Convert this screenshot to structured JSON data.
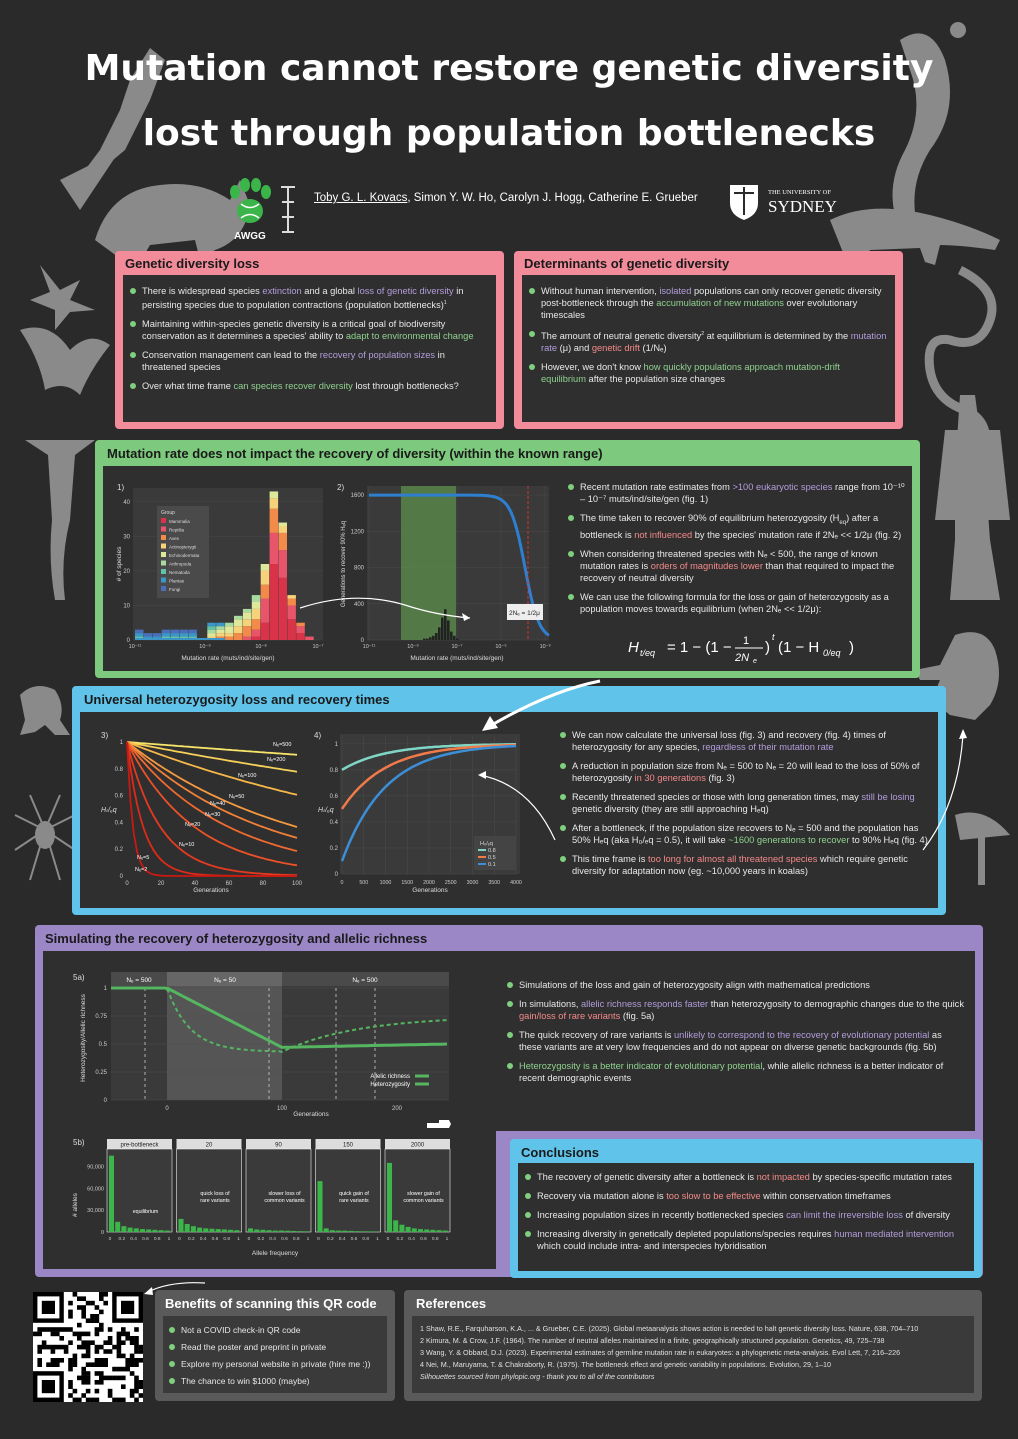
{
  "title_line1": "Mutation cannot restore genetic diversity",
  "title_line2": "lost through population bottlenecks",
  "authors": {
    "first": "Toby G. L. Kovacs",
    "rest": ", Simon Y. W. Ho, Carolyn J. Hogg, Catherine E. Grueber"
  },
  "logo_awgg": "AWGG",
  "logo_uni_small": "THE UNIVERSITY OF",
  "logo_uni_big": "SYDNEY",
  "sec_loss": {
    "title": "Genetic diversity loss",
    "b1_a": "There is widespread species ",
    "b1_h1": "extinction",
    "b1_b": " and a global ",
    "b1_h2": "loss of genetic diversity",
    "b1_c": " in persisting species due to population contractions (population bottlenecks)",
    "b2_a": "Maintaining within-species genetic diversity is a critical goal of biodiversity conservation as it determines a species' ability to ",
    "b2_h": "adapt to environmental change",
    "b3_a": "Conservation management can lead to the ",
    "b3_h": "recovery of population sizes",
    "b3_b": " in threatened species",
    "b4_a": "Over what time frame ",
    "b4_h": "can species recover diversity",
    "b4_b": " lost through bottlenecks?"
  },
  "sec_det": {
    "title": "Determinants of genetic diversity",
    "b1_a": "Without human intervention, ",
    "b1_h1": "isolated",
    "b1_b": " populations can only recover genetic diversity post-bottleneck through the ",
    "b1_h2": "accumulation of new mutations",
    "b1_c": " over evolutionary timescales",
    "b2_a": "The amount of neutral genetic diversity",
    "b2_b": " at equilibrium is determined by the ",
    "b2_h1": "mutation rate",
    "b2_c": " (μ) and ",
    "b2_h2": "genetic drift",
    "b3_a": "However, we don't know ",
    "b3_h": "how quickly populations approach mutation-drift equilibrium",
    "b3_b": " after the population size changes"
  },
  "sec_mut": {
    "title": "Mutation rate does not impact the recovery of diversity (within the known range)",
    "fig1_label": "1)",
    "fig2_label": "2)",
    "b1_a": "Recent mutation rate estimates from ",
    "b1_h": ">100 eukaryotic species",
    "b1_b": " range from 10⁻¹⁰ – 10⁻⁷ muts/ind/site/gen (fig. 1)",
    "b2_a": "The time taken to recover 90% of equilibrium heterozygosity (H",
    "b2_b": ") after a bottleneck is ",
    "b2_h": "not influenced",
    "b2_c": " by the species' mutation rate if 2Nₑ << 1/2μ (fig. 2)",
    "b3_a": "When considering threatened species with Nₑ < 500, the range of known mutation rates is ",
    "b3_h": "orders of magnitudes lower",
    "b3_b": " than that required to impact the recovery of neutral diversity",
    "b4_a": "We can use the following formula for the loss or gain of heterozygosity as a population moves towards equilibrium (when 2Nₑ << 1/2μ):"
  },
  "fig1": {
    "ylabel": "# of species",
    "xlabel": "Mutation rate (muts/ind/site/gen)",
    "legend_title": "Group",
    "groups": [
      "Mammalia",
      "Reptilia",
      "Aves",
      "Actinopterygii",
      "Echinodermata",
      "Arthropoda",
      "Nematoda",
      "Plantae",
      "Fungi"
    ],
    "colors": [
      "#d9334a",
      "#e8546a",
      "#f28a4a",
      "#f6d27a",
      "#dfe89a",
      "#a9dba0",
      "#62c2a8",
      "#3c97c8",
      "#4a6fb8"
    ],
    "yticks": [
      "0",
      "10",
      "20",
      "30",
      "40"
    ],
    "xticks": [
      "10⁻¹¹",
      "10⁻⁹",
      "10⁻⁸",
      "10⁻⁷"
    ]
  },
  "fig2": {
    "ylabel": "Generations to recover 90% Hₑq",
    "xlabel": "Mutation rate (muts/ind/site/gen)",
    "yticks": [
      "0",
      "400",
      "800",
      "1200",
      "1600"
    ],
    "xticks": [
      "10⁻¹¹",
      "10⁻⁹",
      "10⁻⁷",
      "10⁻⁵",
      "10⁻³"
    ],
    "annot": "2Nₑ = 1/2μ"
  },
  "sec_univ": {
    "title": "Universal heterozygosity loss and recovery times",
    "fig3_label": "3)",
    "fig4_label": "4)",
    "b1_a": "We can now calculate the universal loss (fig. 3) and recovery (fig. 4) times of heterozygosity for any species, ",
    "b1_h": "regardless of their mutation rate",
    "b2_a": "A reduction in population size from Nₑ = 500 to Nₑ = 20 will lead to the loss of 50% of heterozygosity ",
    "b2_h": "in 30 generations",
    "b2_b": " (fig. 3)",
    "b3_a": "Recently threatened species or those with long generation times, may ",
    "b3_h": "still be losing",
    "b3_b": " genetic diversity (they are still approaching Hₑq)",
    "b4_a": "After a bottleneck, if the population size recovers to Nₑ = 500 and the population has 50% Hₑq (aka H₀/ₑq = 0.5), it will take ",
    "b4_h": "~1600 generations to recover",
    "b4_b": " to 90% Hₑq (fig. 4)",
    "b5_a": "This time frame is ",
    "b5_h": "too long for almost all threatened species",
    "b5_b": " which require genetic diversity for adaptation now (eg. ~10,000 years in koalas)"
  },
  "fig3": {
    "ylabel": "Hₜ/ₑq",
    "xlabel": "Generations",
    "xticks": [
      "0",
      "20",
      "40",
      "60",
      "80",
      "100"
    ],
    "yticks": [
      "0",
      "0.2",
      "0.4",
      "0.6",
      "0.8",
      "1"
    ],
    "ne_labels": [
      "Nₑ=500",
      "Nₑ=200",
      "Nₑ=100",
      "Nₑ=50",
      "Nₑ=40",
      "Nₑ=30",
      "Nₑ=20",
      "Nₑ=10",
      "Nₑ=5",
      "Nₑ=2"
    ],
    "ne_values": [
      500,
      200,
      100,
      50,
      40,
      30,
      20,
      10,
      5,
      2
    ]
  },
  "fig4": {
    "ylabel": "Hₜ/ₑq",
    "xlabel": "Generations",
    "xticks": [
      "0",
      "500",
      "1000",
      "1500",
      "2000",
      "2500",
      "3000",
      "3500",
      "4000"
    ],
    "yticks": [
      "0",
      "0.2",
      "0.4",
      "0.6",
      "0.8",
      "1"
    ],
    "legend_title": "H₀/ₑq",
    "series": [
      {
        "name": "0.8",
        "h0": 0.8,
        "color": "#7fd6c4"
      },
      {
        "name": "0.5",
        "h0": 0.5,
        "color": "#f07a4a"
      },
      {
        "name": "0.1",
        "h0": 0.1,
        "color": "#3c8fd6"
      }
    ]
  },
  "sec_sim": {
    "title": "Simulating the recovery of heterozygosity and allelic richness",
    "fig5a_label": "5a)",
    "fig5b_label": "5b)",
    "b1": "Simulations of the loss and gain of heterozygosity align with mathematical predictions",
    "b2_a": "In simulations, ",
    "b2_h1": "allelic richness responds faster",
    "b2_b": " than heterozygosity to demographic changes due to the quick ",
    "b2_h2": "gain/loss of rare variants",
    "b2_c": " (fig. 5a)",
    "b3_a": "The quick recovery of rare variants is ",
    "b3_h": "unlikely to correspond to the recovery of evolutionary potential",
    "b3_b": " as these variants are at very low frequencies and do not appear on diverse genetic backgrounds (fig. 5b)",
    "b4_h": "Heterozygosity is a better indicator of evolutionary potential",
    "b4_b": ", while allelic richness is a better indicator of recent demographic events"
  },
  "fig5a": {
    "phases": [
      "Nₑ = 500",
      "Nₑ = 50",
      "Nₑ = 500"
    ],
    "ylabel": "Heterozygosity/Allelic richness",
    "xlabel": "Generations",
    "xticks": [
      "0",
      "100",
      "200"
    ],
    "yticks": [
      "0",
      "0.25",
      "0.5",
      "0.75",
      "1"
    ],
    "legend": [
      "Allelic richness",
      "Heterozygosity"
    ]
  },
  "fig5b": {
    "ylabel": "# alleles",
    "xlabel": "Allele frequency",
    "yticks": [
      "0",
      "30,000",
      "60,000",
      "90,000"
    ],
    "xticks": [
      "0",
      "0.2",
      "0.4",
      "0.6",
      "0.8",
      "1"
    ],
    "panels": [
      {
        "title": "pre-bottleneck",
        "note": "equilibrium",
        "bars": [
          105000,
          14000,
          8000,
          6000,
          5000,
          4000,
          3500,
          3000,
          2500,
          2000
        ]
      },
      {
        "title": "20",
        "note": "quick loss of rare variants",
        "bars": [
          18000,
          11000,
          8000,
          6000,
          5000,
          4500,
          4000,
          3500,
          3000,
          2500
        ]
      },
      {
        "title": "90",
        "note": "slower loss of common variants",
        "bars": [
          5000,
          3500,
          3000,
          2500,
          2000,
          2000,
          1800,
          1500,
          1200,
          1000
        ]
      },
      {
        "title": "150",
        "note": "quick gain of rare variants",
        "bars": [
          70000,
          5000,
          2500,
          2000,
          1800,
          1500,
          1200,
          1000,
          900,
          800
        ]
      },
      {
        "title": "2000",
        "note": "slower gain of common variants",
        "bars": [
          95000,
          16000,
          10000,
          7000,
          5000,
          4000,
          3500,
          3000,
          2500,
          2000
        ]
      }
    ]
  },
  "sec_conc": {
    "title": "Conclusions",
    "b1_a": "The recovery of genetic diversity after a bottleneck is ",
    "b1_h": "not impacted",
    "b1_b": " by species-specific mutation rates",
    "b2_a": "Recovery via mutation alone is ",
    "b2_h": "too slow to be effective",
    "b2_b": " within conservation timeframes",
    "b3_a": "Increasing population sizes in recently bottlenecked species ",
    "b3_h": "can limit the irreversible loss",
    "b3_b": " of diversity",
    "b4_a": "Increasing diversity in genetically depleted populations/species requires ",
    "b4_h": "human mediated intervention",
    "b4_b": " which could include intra- and interspecies hybridisation"
  },
  "sec_qr": {
    "title": "Benefits of scanning this QR code",
    "items": [
      "Not a COVID check-in QR code",
      "Read the poster and preprint in private",
      "Explore my personal website in private (hire me :))",
      "The chance to win $1000 (maybe)"
    ]
  },
  "sec_refs": {
    "title": "References",
    "items": [
      "1 Shaw, R.E., Farquharson, K.A., ... & Grueber, C.E. (2025). Global metaanalysis shows action is needed to halt genetic diversity loss. Nature, 638, 704–710",
      "2 Kimura, M. & Crow, J.F. (1964). The number of neutral alleles maintained in a finite, geographically structured population. Genetics, 49, 725–738",
      "3 Wang, Y. & Obbard, D.J. (2023). Experimental estimates of germline mutation rate in eukaryotes: a phylogenetic meta-analysis. Evol Lett, 7, 216–226",
      "4 Nei, M., Maruyama, T. & Chakraborty, R. (1975). The bottleneck effect and genetic variability in populations. Evolution, 29, 1–10"
    ],
    "credit": "Silhouettes sourced from phylopic.org - thank you to all of the contributors"
  },
  "colors": {
    "pink": "#f28b9a",
    "green": "#7dc97d",
    "blue": "#5fc3ea",
    "purple": "#9b86c6",
    "bg": "#2a2a2a",
    "inner": "#2f2f2f"
  }
}
